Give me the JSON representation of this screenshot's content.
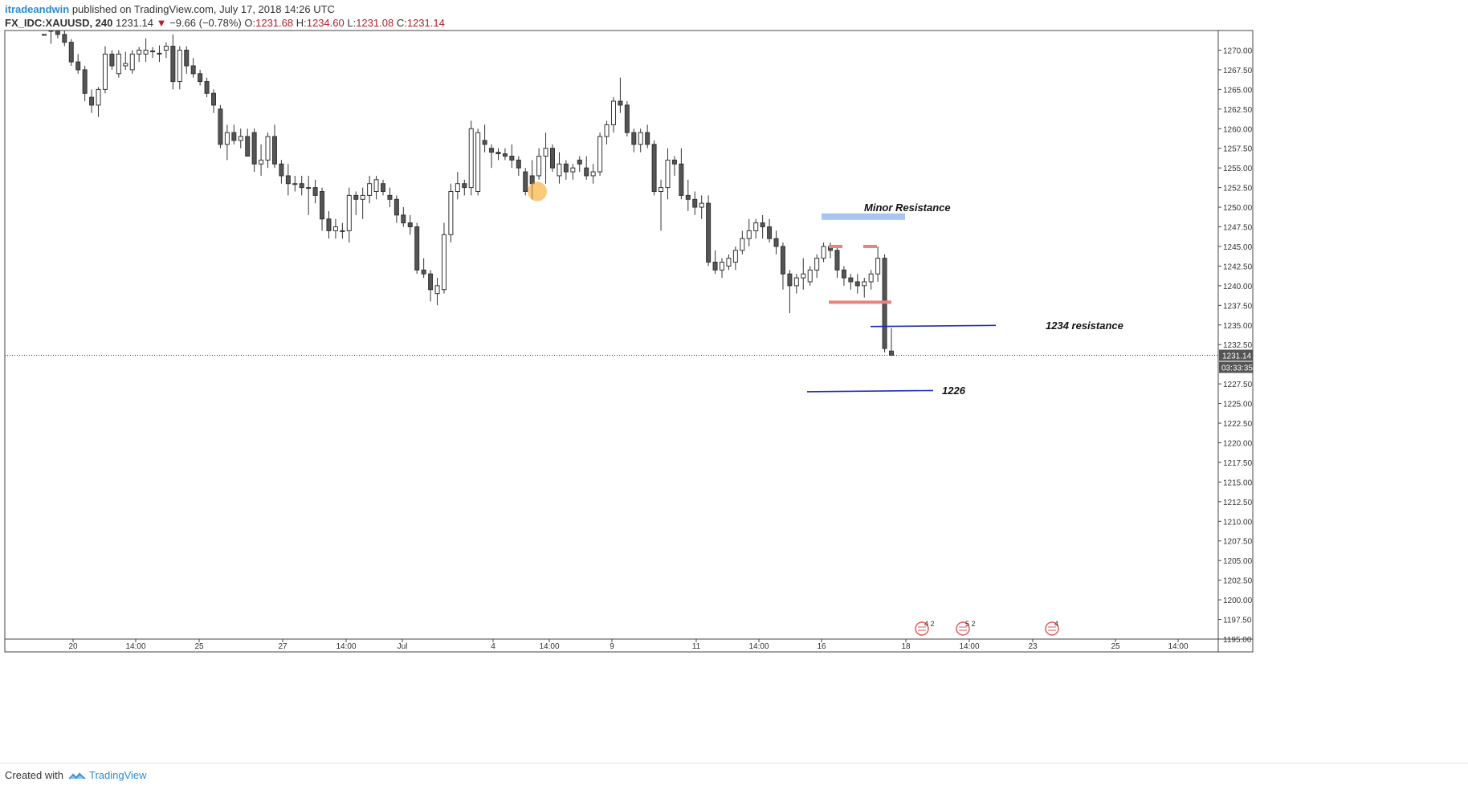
{
  "header": {
    "author": "itradeandwin",
    "published_text": "published on TradingView.com, July 17, 2018 14:26 UTC",
    "symbol": "FX_IDC:XAUUSD, 240",
    "last": "1231.14",
    "change_arrow": "▼",
    "change": "−9.66 (−0.78%)",
    "o_label": "O:",
    "o_value": "1231.68",
    "h_label": "H:",
    "h_value": "1234.60",
    "l_label": "L:",
    "l_value": "1231.08",
    "c_label": "C:",
    "c_value": "1231.14"
  },
  "footer": {
    "created_with": "Created with",
    "brand": "TradingView"
  },
  "colors": {
    "down": "#b3202a",
    "accent": "#2a8bd5",
    "candle_fill_down": "#555555",
    "line_blue": "#1f2bb8",
    "resistance_band": "#a9c4f0",
    "red_marks": "#f08080",
    "orange_circle": "#f5a623"
  },
  "chart_data": {
    "type": "candlestick",
    "y_axis": {
      "ylim": [
        1195.0,
        1272.5
      ],
      "ticks": [
        "1270.00",
        "1267.50",
        "1265.00",
        "1262.50",
        "1260.00",
        "1257.50",
        "1255.00",
        "1252.50",
        "1250.00",
        "1247.50",
        "1245.00",
        "1242.50",
        "1240.00",
        "1237.50",
        "1235.00",
        "1232.50",
        "1227.50",
        "1225.00",
        "1222.50",
        "1220.00",
        "1217.50",
        "1215.00",
        "1212.50",
        "1210.00",
        "1207.50",
        "1205.00",
        "1202.50",
        "1200.00",
        "1197.50",
        "1195.00"
      ],
      "last_price_label": "1231.14",
      "countdown_label": "03:33:35"
    },
    "x_axis": {
      "ticks": [
        "20",
        "14:00",
        "25",
        "27",
        "14:00",
        "Jul",
        "4",
        "14:00",
        "9",
        "11",
        "14:00",
        "16",
        "18",
        "14:00",
        "23",
        "25",
        "14:00"
      ]
    },
    "annotations": [
      {
        "text": "Minor Resistance",
        "type": "zone",
        "price": 1248.8
      },
      {
        "text": "1234 resistance",
        "type": "line",
        "price": 1234.9
      },
      {
        "text": "1226",
        "type": "line",
        "price": 1226.6
      }
    ],
    "events": [
      "4 2",
      "5 2",
      "4"
    ],
    "candles": [
      [
        1272.0,
        1272.0,
        1272.0,
        1272.0
      ],
      [
        1273.5,
        1274.0,
        1270.8,
        1273.0
      ],
      [
        1273.0,
        1273.4,
        1271.5,
        1272.0
      ],
      [
        1272.0,
        1272.5,
        1270.5,
        1271.0
      ],
      [
        1271.0,
        1271.4,
        1268.0,
        1268.5
      ],
      [
        1268.5,
        1269.5,
        1267.0,
        1267.5
      ],
      [
        1267.5,
        1268.0,
        1263.5,
        1264.5
      ],
      [
        1264.0,
        1265.0,
        1262.0,
        1263.0
      ],
      [
        1263.0,
        1265.3,
        1261.5,
        1265.0
      ],
      [
        1265.0,
        1270.5,
        1264.5,
        1269.5
      ],
      [
        1269.5,
        1270.0,
        1267.5,
        1268.0
      ],
      [
        1267.0,
        1270.0,
        1266.5,
        1269.5
      ],
      [
        1268.0,
        1269.8,
        1267.5,
        1268.3
      ],
      [
        1267.5,
        1270.0,
        1267.0,
        1269.5
      ],
      [
        1269.5,
        1270.4,
        1268.5,
        1270.0
      ],
      [
        1269.5,
        1271.5,
        1268.5,
        1270.0
      ],
      [
        1269.8,
        1270.4,
        1269.0,
        1269.9
      ],
      [
        1269.5,
        1270.6,
        1268.5,
        1269.6
      ],
      [
        1270.0,
        1271.0,
        1269.0,
        1270.5
      ],
      [
        1270.5,
        1272.0,
        1265.0,
        1266.0
      ],
      [
        1266.0,
        1270.5,
        1265.0,
        1270.0
      ],
      [
        1270.0,
        1270.5,
        1267.0,
        1268.0
      ],
      [
        1268.0,
        1269.0,
        1266.5,
        1267.0
      ],
      [
        1267.0,
        1267.5,
        1265.5,
        1266.0
      ],
      [
        1266.0,
        1266.5,
        1264.0,
        1264.5
      ],
      [
        1264.5,
        1265.0,
        1262.0,
        1263.0
      ],
      [
        1262.5,
        1263.0,
        1257.5,
        1258.0
      ],
      [
        1258.0,
        1260.5,
        1256.0,
        1259.5
      ],
      [
        1259.5,
        1260.5,
        1258.0,
        1258.5
      ],
      [
        1258.5,
        1260.0,
        1257.5,
        1259.0
      ],
      [
        1259.0,
        1260.0,
        1256.5,
        1256.5
      ],
      [
        1259.5,
        1260.0,
        1254.5,
        1255.5
      ],
      [
        1255.5,
        1258.0,
        1254.0,
        1256.0
      ],
      [
        1256.0,
        1259.5,
        1255.0,
        1259.0
      ],
      [
        1259.0,
        1260.5,
        1255.0,
        1255.5
      ],
      [
        1255.5,
        1256.0,
        1253.0,
        1254.0
      ],
      [
        1254.0,
        1255.5,
        1251.5,
        1253.0
      ],
      [
        1253.0,
        1254.0,
        1252.0,
        1253.0
      ],
      [
        1253.0,
        1254.0,
        1251.5,
        1252.5
      ],
      [
        1252.5,
        1254.0,
        1249.0,
        1252.5
      ],
      [
        1252.5,
        1253.5,
        1250.5,
        1251.5
      ],
      [
        1252.0,
        1252.5,
        1247.0,
        1248.5
      ],
      [
        1248.5,
        1249.5,
        1246.0,
        1247.0
      ],
      [
        1247.0,
        1248.5,
        1246.0,
        1247.5
      ],
      [
        1247.0,
        1248.0,
        1246.0,
        1247.0
      ],
      [
        1247.0,
        1252.5,
        1245.5,
        1251.5
      ],
      [
        1251.5,
        1252.0,
        1249.0,
        1251.0
      ],
      [
        1251.0,
        1252.5,
        1248.5,
        1251.5
      ],
      [
        1251.5,
        1254.0,
        1250.5,
        1253.0
      ],
      [
        1252.0,
        1254.0,
        1251.0,
        1253.5
      ],
      [
        1253.0,
        1253.5,
        1251.5,
        1252.0
      ],
      [
        1251.5,
        1252.5,
        1250.0,
        1251.0
      ],
      [
        1251.0,
        1251.5,
        1248.0,
        1249.0
      ],
      [
        1249.0,
        1250.0,
        1247.5,
        1248.0
      ],
      [
        1248.0,
        1249.0,
        1246.5,
        1247.5
      ],
      [
        1247.5,
        1248.0,
        1241.5,
        1242.0
      ],
      [
        1242.0,
        1243.5,
        1241.0,
        1241.5
      ],
      [
        1241.5,
        1242.0,
        1238.0,
        1239.5
      ],
      [
        1239.0,
        1241.0,
        1237.5,
        1240.0
      ],
      [
        1239.5,
        1248.0,
        1239.0,
        1246.5
      ],
      [
        1246.5,
        1253.0,
        1245.5,
        1252.0
      ],
      [
        1252.0,
        1254.5,
        1251.0,
        1253.0
      ],
      [
        1253.0,
        1253.5,
        1251.5,
        1252.5
      ],
      [
        1252.5,
        1261.0,
        1251.5,
        1260.0
      ],
      [
        1252.0,
        1260.0,
        1251.5,
        1259.5
      ],
      [
        1258.5,
        1260.5,
        1257.0,
        1258.0
      ],
      [
        1257.5,
        1258.0,
        1255.0,
        1257.0
      ],
      [
        1257.0,
        1257.5,
        1256.0,
        1256.8
      ],
      [
        1256.8,
        1257.5,
        1256.0,
        1256.5
      ],
      [
        1256.5,
        1258.0,
        1255.0,
        1256.0
      ],
      [
        1256.0,
        1256.5,
        1254.0,
        1255.0
      ],
      [
        1254.5,
        1255.0,
        1251.5,
        1252.0
      ],
      [
        1254.0,
        1256.0,
        1251.0,
        1253.0
      ],
      [
        1254.0,
        1257.5,
        1253.5,
        1256.5
      ],
      [
        1256.5,
        1259.5,
        1253.0,
        1257.5
      ],
      [
        1257.5,
        1258.0,
        1254.5,
        1255.0
      ],
      [
        1254.0,
        1257.0,
        1253.0,
        1255.5
      ],
      [
        1255.5,
        1256.0,
        1253.5,
        1254.5
      ],
      [
        1254.5,
        1255.5,
        1253.5,
        1255.0
      ],
      [
        1256.0,
        1256.5,
        1254.5,
        1255.5
      ],
      [
        1255.0,
        1256.5,
        1253.5,
        1254.0
      ],
      [
        1254.0,
        1255.5,
        1253.0,
        1254.5
      ],
      [
        1254.5,
        1259.5,
        1254.0,
        1259.0
      ],
      [
        1259.0,
        1261.0,
        1258.0,
        1260.5
      ],
      [
        1260.5,
        1264.0,
        1259.5,
        1263.5
      ],
      [
        1263.5,
        1266.5,
        1262.0,
        1263.0
      ],
      [
        1263.0,
        1263.5,
        1259.0,
        1259.5
      ],
      [
        1259.5,
        1260.0,
        1257.0,
        1258.0
      ],
      [
        1258.0,
        1260.0,
        1257.0,
        1259.5
      ],
      [
        1259.5,
        1260.5,
        1257.5,
        1258.0
      ],
      [
        1258.0,
        1258.5,
        1251.5,
        1252.0
      ],
      [
        1252.0,
        1253.5,
        1247.0,
        1252.5
      ],
      [
        1252.5,
        1257.5,
        1251.0,
        1256.0
      ],
      [
        1256.0,
        1256.5,
        1254.0,
        1255.5
      ],
      [
        1255.5,
        1257.5,
        1251.0,
        1251.5
      ],
      [
        1251.5,
        1253.5,
        1249.5,
        1251.0
      ],
      [
        1251.0,
        1252.0,
        1249.0,
        1250.0
      ],
      [
        1250.0,
        1251.5,
        1248.5,
        1250.5
      ],
      [
        1250.5,
        1251.5,
        1242.5,
        1243.0
      ],
      [
        1243.0,
        1244.5,
        1241.5,
        1242.0
      ],
      [
        1242.0,
        1243.5,
        1241.0,
        1243.0
      ],
      [
        1242.5,
        1244.0,
        1242.0,
        1243.5
      ],
      [
        1243.0,
        1245.0,
        1242.0,
        1244.5
      ],
      [
        1244.5,
        1247.0,
        1244.0,
        1246.0
      ],
      [
        1246.0,
        1248.5,
        1245.0,
        1247.0
      ],
      [
        1247.0,
        1248.5,
        1246.0,
        1248.0
      ],
      [
        1248.0,
        1249.0,
        1246.0,
        1247.5
      ],
      [
        1247.5,
        1248.5,
        1245.5,
        1246.0
      ],
      [
        1246.0,
        1247.0,
        1244.0,
        1245.0
      ],
      [
        1245.0,
        1245.5,
        1239.5,
        1241.5
      ],
      [
        1241.5,
        1242.0,
        1236.5,
        1240.0
      ],
      [
        1240.0,
        1241.5,
        1239.0,
        1241.0
      ],
      [
        1241.0,
        1243.5,
        1239.5,
        1241.5
      ],
      [
        1240.5,
        1242.5,
        1240.0,
        1242.0
      ],
      [
        1242.0,
        1244.0,
        1241.0,
        1243.5
      ],
      [
        1243.5,
        1245.5,
        1243.0,
        1245.0
      ],
      [
        1245.0,
        1245.5,
        1243.5,
        1244.5
      ],
      [
        1244.5,
        1245.0,
        1241.0,
        1242.0
      ],
      [
        1242.0,
        1242.5,
        1240.0,
        1241.0
      ],
      [
        1241.0,
        1241.5,
        1239.5,
        1240.5
      ],
      [
        1240.5,
        1241.5,
        1239.0,
        1240.0
      ],
      [
        1240.0,
        1241.0,
        1238.5,
        1240.5
      ],
      [
        1240.5,
        1242.0,
        1239.5,
        1241.5
      ],
      [
        1241.5,
        1245.0,
        1240.5,
        1243.5
      ],
      [
        1243.5,
        1244.0,
        1231.5,
        1232.0
      ],
      [
        1231.68,
        1234.6,
        1231.08,
        1231.14
      ]
    ]
  }
}
